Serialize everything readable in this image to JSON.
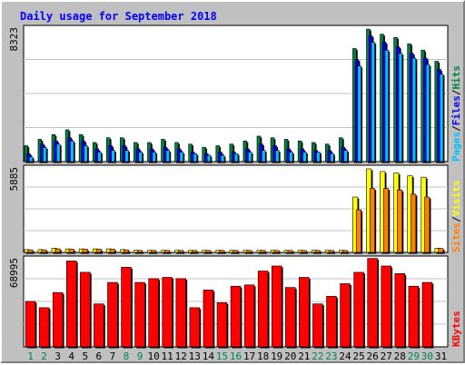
{
  "chart_data": {
    "type": "bar",
    "title": "Daily usage for September 2018",
    "categories": [
      "1",
      "2",
      "3",
      "4",
      "5",
      "6",
      "7",
      "8",
      "9",
      "10",
      "11",
      "12",
      "13",
      "14",
      "15",
      "16",
      "17",
      "18",
      "19",
      "20",
      "21",
      "22",
      "23",
      "24",
      "25",
      "26",
      "27",
      "28",
      "29",
      "30",
      "31"
    ],
    "weekend_days": [
      "1",
      "2",
      "8",
      "9",
      "15",
      "16",
      "22",
      "23",
      "29",
      "30"
    ],
    "colors": {
      "hits": "#008040",
      "files": "#0000ff",
      "pages": "#00c0ff",
      "visits": "#ffff00",
      "sites": "#ff8000",
      "kbytes": "#ff0000",
      "weekday_label": "#000000",
      "weekend_label": "#00805c",
      "title": "#0000ff"
    },
    "panels": [
      {
        "name": "hits-files-pages",
        "max_label": "8323",
        "ylim": [
          0,
          8323
        ],
        "legend": [
          {
            "label": "Pages",
            "color": "#00c0ff"
          },
          {
            "label": "Files",
            "color": "#0000ff"
          },
          {
            "label": "Hits",
            "color": "#008040"
          }
        ],
        "series": [
          {
            "name": "Hits",
            "color": "#008040",
            "values": [
              1000,
              1400,
              1700,
              2000,
              1700,
              1200,
              1500,
              1500,
              1200,
              1200,
              1400,
              1200,
              1100,
              900,
              1000,
              1100,
              1300,
              1600,
              1500,
              1400,
              1300,
              1200,
              1100,
              1500,
              7100,
              8323,
              8000,
              7800,
              7400,
              7000,
              6300
            ]
          },
          {
            "name": "Files",
            "color": "#0000ff",
            "values": [
              500,
              1100,
              1300,
              1500,
              1300,
              800,
              1000,
              1000,
              800,
              800,
              900,
              800,
              600,
              500,
              600,
              600,
              800,
              1100,
              1000,
              800,
              800,
              700,
              700,
              900,
              6400,
              7900,
              7500,
              7200,
              6800,
              6500,
              5800
            ]
          },
          {
            "name": "Pages",
            "color": "#00c0ff",
            "values": [
              300,
              900,
              1100,
              1300,
              1000,
              600,
              700,
              700,
              600,
              600,
              700,
              600,
              500,
              400,
              400,
              500,
              600,
              700,
              700,
              600,
              600,
              600,
              500,
              700,
              6000,
              7500,
              7000,
              6800,
              6500,
              6100,
              5500
            ]
          }
        ]
      },
      {
        "name": "visits-sites",
        "max_label": "5885",
        "ylim": [
          0,
          5885
        ],
        "legend": [
          {
            "label": "Sites",
            "color": "#ff8000"
          },
          {
            "label": "Visits",
            "color": "#ffff00"
          }
        ],
        "series": [
          {
            "name": "Visits",
            "color": "#ffff00",
            "values": [
              200,
              200,
              300,
              250,
              250,
              250,
              250,
              200,
              150,
              150,
              150,
              150,
              150,
              150,
              150,
              150,
              150,
              150,
              150,
              150,
              150,
              150,
              150,
              150,
              3900,
              5885,
              5700,
              5600,
              5400,
              5300,
              300
            ]
          },
          {
            "name": "Sites",
            "color": "#ff8000",
            "values": [
              180,
              180,
              250,
              230,
              230,
              230,
              230,
              180,
              140,
              140,
              140,
              140,
              140,
              140,
              140,
              140,
              140,
              140,
              140,
              140,
              140,
              140,
              140,
              140,
              3000,
              4500,
              4500,
              4400,
              4100,
              3900,
              280
            ]
          }
        ]
      },
      {
        "name": "kbytes",
        "max_label": "68995",
        "ylim": [
          0,
          68995
        ],
        "legend": [
          {
            "label": "KBytes",
            "color": "#ff0000"
          }
        ],
        "series": [
          {
            "name": "KBytes",
            "color": "#ff0000",
            "values": [
              36000,
              31000,
              43000,
              68000,
              59000,
              34000,
              51000,
              63000,
              51000,
              54000,
              55000,
              54000,
              31000,
              45000,
              35000,
              48000,
              49000,
              60000,
              64000,
              47000,
              55000,
              34000,
              40000,
              50000,
              59000,
              70000,
              64000,
              58000,
              48000,
              51000,
              0
            ]
          }
        ]
      }
    ]
  }
}
